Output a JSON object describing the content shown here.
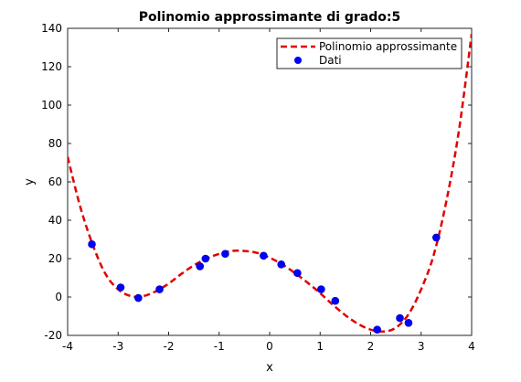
{
  "chart_data": {
    "type": "line",
    "title": "Polinomio approssimante di grado:5",
    "xlabel": "x",
    "ylabel": "y",
    "xlim": [
      -4,
      4
    ],
    "ylim": [
      -20,
      140
    ],
    "xticks": [
      -4,
      -3,
      -2,
      -1,
      0,
      1,
      2,
      3,
      4
    ],
    "yticks": [
      -20,
      0,
      20,
      40,
      60,
      80,
      100,
      120,
      140
    ],
    "xtick_labels": [
      "-4",
      "-3",
      "-2",
      "-1",
      "0",
      "1",
      "2",
      "3",
      "4"
    ],
    "ytick_labels": [
      "-20",
      "0",
      "20",
      "40",
      "60",
      "80",
      "100",
      "120",
      "140"
    ],
    "grid": false,
    "legend_position": "top-right",
    "series": [
      {
        "name": "Polinomio approssimante",
        "kind": "line",
        "style": "dashed",
        "color": "#e00000",
        "x": [
          -4.0,
          -3.75,
          -3.5,
          -3.25,
          -3.0,
          -2.75,
          -2.5,
          -2.25,
          -2.0,
          -1.75,
          -1.5,
          -1.25,
          -1.0,
          -0.75,
          -0.5,
          -0.25,
          0.0,
          0.25,
          0.5,
          0.75,
          1.0,
          1.25,
          1.5,
          1.75,
          2.0,
          2.25,
          2.5,
          2.75,
          3.0,
          3.25,
          3.5,
          3.75,
          4.0
        ],
        "y": [
          73,
          47,
          27,
          12,
          4,
          0.5,
          0.5,
          3,
          7,
          12,
          16.5,
          20,
          22.5,
          24,
          24,
          23,
          20.5,
          17,
          12.5,
          7.5,
          2,
          -4,
          -9.5,
          -14,
          -17,
          -18,
          -16,
          -9,
          4,
          22,
          50,
          87,
          137
        ]
      },
      {
        "name": "Dati",
        "kind": "scatter",
        "color": "#0000ff",
        "x": [
          -3.52,
          -2.95,
          -2.6,
          -2.18,
          -1.38,
          -1.27,
          -0.88,
          -0.12,
          0.23,
          0.55,
          1.02,
          1.3,
          2.13,
          2.58,
          2.75,
          3.3
        ],
        "y": [
          27.5,
          5,
          -0.5,
          4,
          16,
          20,
          22.5,
          21.5,
          17,
          12.5,
          4,
          -2,
          -17,
          -11,
          -13.5,
          31
        ]
      }
    ]
  },
  "colors": {
    "line": "#e00000",
    "marker": "#0000ff",
    "axes": "#262626"
  }
}
